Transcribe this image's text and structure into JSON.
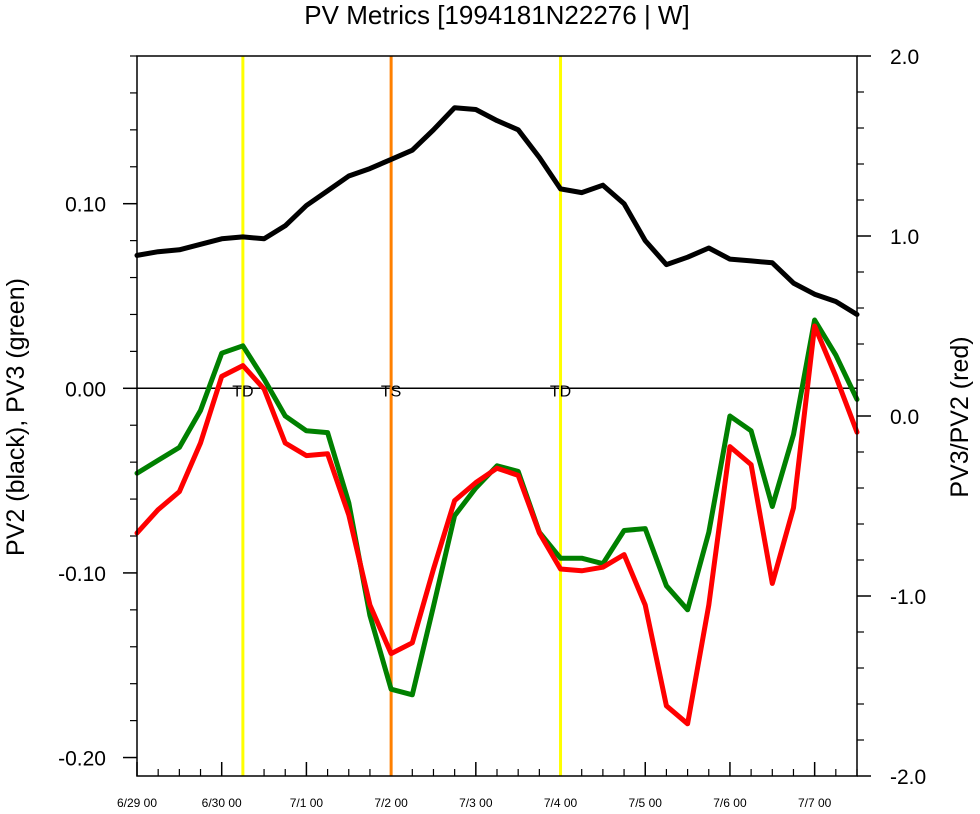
{
  "chart_data": {
    "type": "line",
    "title": "PV Metrics [1994181N22276 | W]",
    "ylabel_left": "PV2 (black), PV3 (green)",
    "ylabel_right": "PV3/PV2 (red)",
    "x_range": [
      0,
      8.5
    ],
    "ylim_left": [
      -0.21,
      0.18
    ],
    "ylim_right": [
      -2.0,
      2.0
    ],
    "xticks": [
      {
        "x": 0,
        "label": "6/29 00"
      },
      {
        "x": 1,
        "label": "6/30 00"
      },
      {
        "x": 2,
        "label": "7/1 00"
      },
      {
        "x": 3,
        "label": "7/2 00"
      },
      {
        "x": 4,
        "label": "7/3 00"
      },
      {
        "x": 5,
        "label": "7/4 00"
      },
      {
        "x": 6,
        "label": "7/5 00"
      },
      {
        "x": 7,
        "label": "7/6 00"
      },
      {
        "x": 8,
        "label": "7/7 00"
      }
    ],
    "yticks_left": [
      {
        "v": 0.1,
        "label": "0.10"
      },
      {
        "v": 0.0,
        "label": "0.00"
      },
      {
        "v": -0.1,
        "label": "-0.10"
      },
      {
        "v": -0.2,
        "label": "-0.20"
      }
    ],
    "yticks_right": [
      {
        "v": 2.0,
        "label": "2.0"
      },
      {
        "v": 1.0,
        "label": "1.0"
      },
      {
        "v": 0.0,
        "label": "0.0"
      },
      {
        "v": -1.0,
        "label": "-1.0"
      },
      {
        "v": -2.0,
        "label": "-2.0"
      }
    ],
    "x": [
      0,
      0.25,
      0.5,
      0.75,
      1,
      1.25,
      1.5,
      1.75,
      2,
      2.25,
      2.5,
      2.75,
      3,
      3.25,
      3.5,
      3.75,
      4,
      4.25,
      4.5,
      4.75,
      5,
      5.25,
      5.5,
      5.75,
      6,
      6.25,
      6.5,
      6.75,
      7,
      7.25,
      7.5,
      7.75,
      8,
      8.25,
      8.5
    ],
    "series": [
      {
        "color": "#000000",
        "axis": "left",
        "values": [
          0.072,
          0.074,
          0.075,
          0.078,
          0.081,
          0.082,
          0.081,
          0.088,
          0.099,
          0.107,
          0.115,
          0.119,
          0.124,
          0.129,
          0.14,
          0.152,
          0.151,
          0.145,
          0.14,
          0.125,
          0.108,
          0.106,
          0.11,
          0.1,
          0.08,
          0.067,
          0.071,
          0.076,
          0.07,
          0.069,
          0.068,
          0.057,
          0.051,
          0.047,
          0.04
        ]
      },
      {
        "color": "#008000",
        "axis": "left",
        "values": [
          -0.046,
          -0.039,
          -0.032,
          -0.012,
          0.019,
          0.023,
          0.005,
          -0.015,
          -0.023,
          -0.024,
          -0.062,
          -0.123,
          -0.163,
          -0.166,
          -0.118,
          -0.069,
          -0.054,
          -0.042,
          -0.045,
          -0.078,
          -0.092,
          -0.092,
          -0.095,
          -0.077,
          -0.076,
          -0.107,
          -0.12,
          -0.078,
          -0.015,
          -0.023,
          -0.064,
          -0.025,
          0.037,
          0.018,
          -0.006
        ]
      },
      {
        "color": "#ff0000",
        "axis": "right",
        "values": [
          -0.65,
          -0.52,
          -0.42,
          -0.15,
          0.22,
          0.28,
          0.15,
          -0.15,
          -0.22,
          -0.21,
          -0.55,
          -1.05,
          -1.32,
          -1.26,
          -0.85,
          -0.47,
          -0.37,
          -0.29,
          -0.33,
          -0.65,
          -0.85,
          -0.86,
          -0.84,
          -0.77,
          -1.05,
          -1.61,
          -1.71,
          -1.05,
          -0.17,
          -0.27,
          -0.93,
          -0.51,
          0.5,
          0.22,
          -0.09
        ]
      }
    ],
    "reference_line": {
      "axis": "left",
      "value": 0.0
    },
    "vertical_markers": [
      {
        "x": 1.25,
        "color": "#ffff00",
        "label": "TD"
      },
      {
        "x": 3.0,
        "color": "#ff8000",
        "label": "TS"
      },
      {
        "x": 5.0,
        "color": "#ffff00",
        "label": "TD"
      }
    ]
  }
}
